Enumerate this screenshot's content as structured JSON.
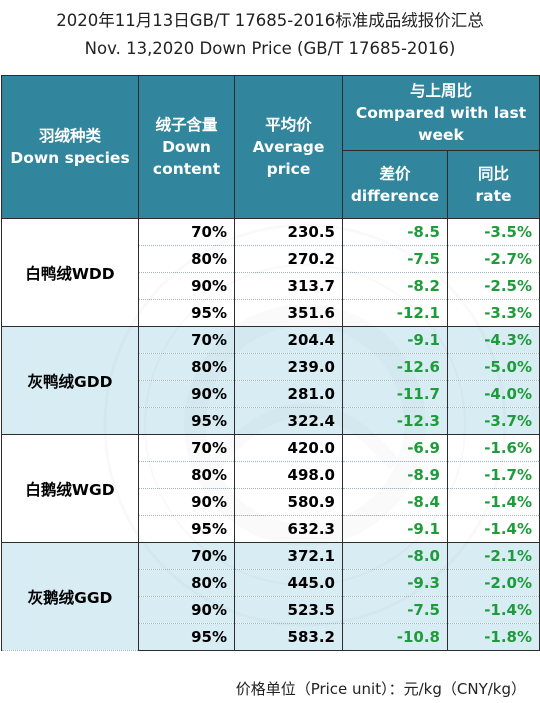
{
  "title": {
    "cn": "2020年11月13日GB/T 17685-2016标准成品绒报价汇总",
    "en": "Nov. 13,2020 Down Price (GB/T 17685-2016)"
  },
  "header": {
    "species_cn": "羽绒种类",
    "species_en": "Down species",
    "content_cn": "绒子含量",
    "content_en1": "Down",
    "content_en2": "content",
    "avg_cn": "平均价",
    "avg_en1": "Average",
    "avg_en2": "price",
    "compare_cn": "与上周比",
    "compare_en1": "Compared with last",
    "compare_en2": "week",
    "diff_cn": "差价",
    "diff_en": "difference",
    "rate_cn": "同比",
    "rate_en": "rate"
  },
  "groups": [
    {
      "species": "白鸭绒WDD",
      "rows": [
        {
          "content": "70%",
          "price": "230.5",
          "diff": "-8.5",
          "rate": "-3.5%"
        },
        {
          "content": "80%",
          "price": "270.2",
          "diff": "-7.5",
          "rate": "-2.7%"
        },
        {
          "content": "90%",
          "price": "313.7",
          "diff": "-8.2",
          "rate": "-2.5%"
        },
        {
          "content": "95%",
          "price": "351.6",
          "diff": "-12.1",
          "rate": "-3.3%"
        }
      ]
    },
    {
      "species": "灰鸭绒GDD",
      "rows": [
        {
          "content": "70%",
          "price": "204.4",
          "diff": "-9.1",
          "rate": "-4.3%"
        },
        {
          "content": "80%",
          "price": "239.0",
          "diff": "-12.6",
          "rate": "-5.0%"
        },
        {
          "content": "90%",
          "price": "281.0",
          "diff": "-11.7",
          "rate": "-4.0%"
        },
        {
          "content": "95%",
          "price": "322.4",
          "diff": "-12.3",
          "rate": "-3.7%"
        }
      ]
    },
    {
      "species": "白鹅绒WGD",
      "rows": [
        {
          "content": "70%",
          "price": "420.0",
          "diff": "-6.9",
          "rate": "-1.6%"
        },
        {
          "content": "80%",
          "price": "498.0",
          "diff": "-8.9",
          "rate": "-1.7%"
        },
        {
          "content": "90%",
          "price": "580.9",
          "diff": "-8.4",
          "rate": "-1.4%"
        },
        {
          "content": "95%",
          "price": "632.3",
          "diff": "-9.1",
          "rate": "-1.4%"
        }
      ]
    },
    {
      "species": "灰鹅绒GGD",
      "rows": [
        {
          "content": "70%",
          "price": "372.1",
          "diff": "-8.0",
          "rate": "-2.1%"
        },
        {
          "content": "80%",
          "price": "445.0",
          "diff": "-9.3",
          "rate": "-2.0%"
        },
        {
          "content": "90%",
          "price": "523.5",
          "diff": "-7.5",
          "rate": "-1.4%"
        },
        {
          "content": "95%",
          "price": "583.2",
          "diff": "-10.8",
          "rate": "-1.8%"
        }
      ]
    }
  ],
  "unit_note": "价格单位（Price unit）：元/kg（CNY/kg）",
  "colors": {
    "header_bg": "#31859c",
    "header_text": "#ffffff",
    "alt_group_bg": "#cfe8f2",
    "change_text": "#1e9b3a"
  }
}
